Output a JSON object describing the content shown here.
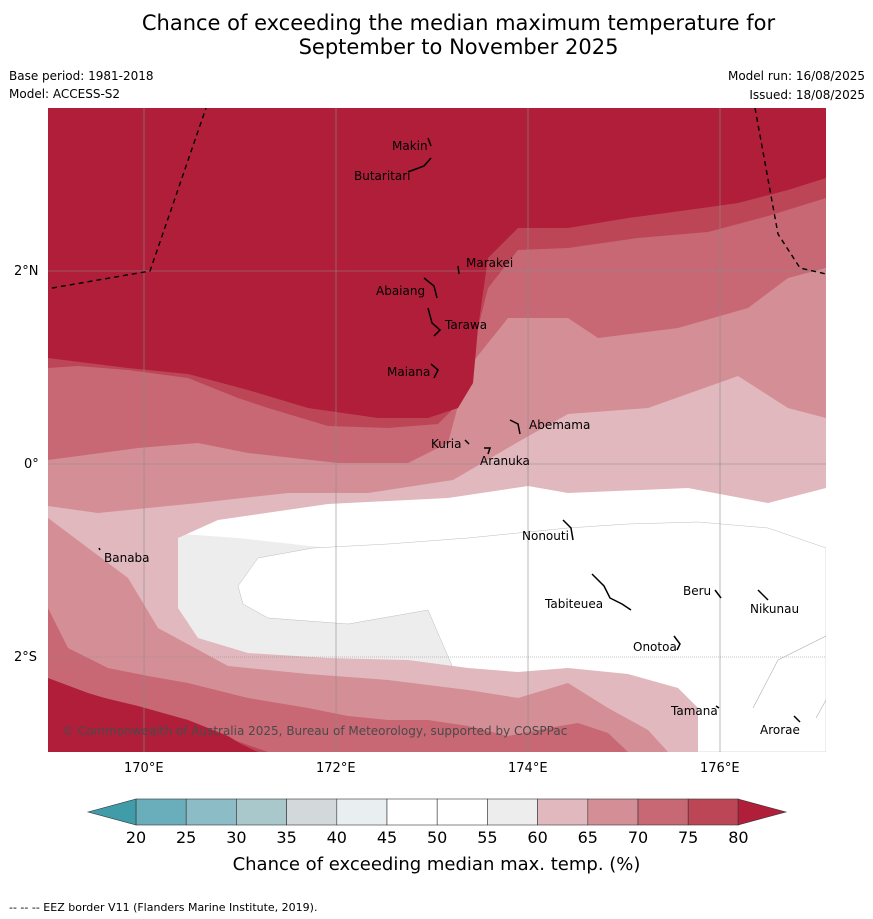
{
  "title_line1": "Chance of exceeding the median maximum temperature for",
  "title_line2": "September to November 2025",
  "base_period": "Base period: 1981-2018",
  "model": "Model: ACCESS-S2",
  "model_run": "Model run: 16/08/2025",
  "issued": "Issued: 18/08/2025",
  "copyright": "© Commonwealth of Australia 2025, Bureau of Meteorology, supported by COSPPac",
  "footnote": "--  --  -- EEZ border V11 (Flanders Marine Institute, 2019).",
  "lat_labels": [
    "2°N",
    "0°",
    "2°S"
  ],
  "lon_labels": [
    "170°E",
    "172°E",
    "174°E",
    "176°E"
  ],
  "islands": [
    "Makin",
    "Butaritari",
    "Marakei",
    "Abaiang",
    "Tarawa",
    "Maiana",
    "Abemama",
    "Kuria",
    "Aranuka",
    "Banaba",
    "Nonouti",
    "Tabiteuea",
    "Beru",
    "Nikunau",
    "Onotoa",
    "Tamana",
    "Arorae"
  ],
  "colorbar": {
    "label": "Chance of exceeding median max. temp. (%)",
    "ticks": [
      "20",
      "25",
      "30",
      "35",
      "40",
      "45",
      "50",
      "55",
      "60",
      "65",
      "70",
      "75",
      "80"
    ],
    "colors": [
      "#6aaebb",
      "#8cbcc6",
      "#a9c8cc",
      "#d3d8da",
      "#e9eef0",
      "#ffffff",
      "#ffffff",
      "#eeeded",
      "#e0b8bd",
      "#d48e96",
      "#c76874",
      "#bc4656"
    ],
    "low_color": "#3f9ca8",
    "high_color": "#b01e3a"
  },
  "colors": {
    "c55": "#eeeded",
    "c60": "#e0b8bd",
    "c65": "#d48e96",
    "c70": "#c76874",
    "c75": "#bc4656",
    "c80": "#b01e3a"
  }
}
